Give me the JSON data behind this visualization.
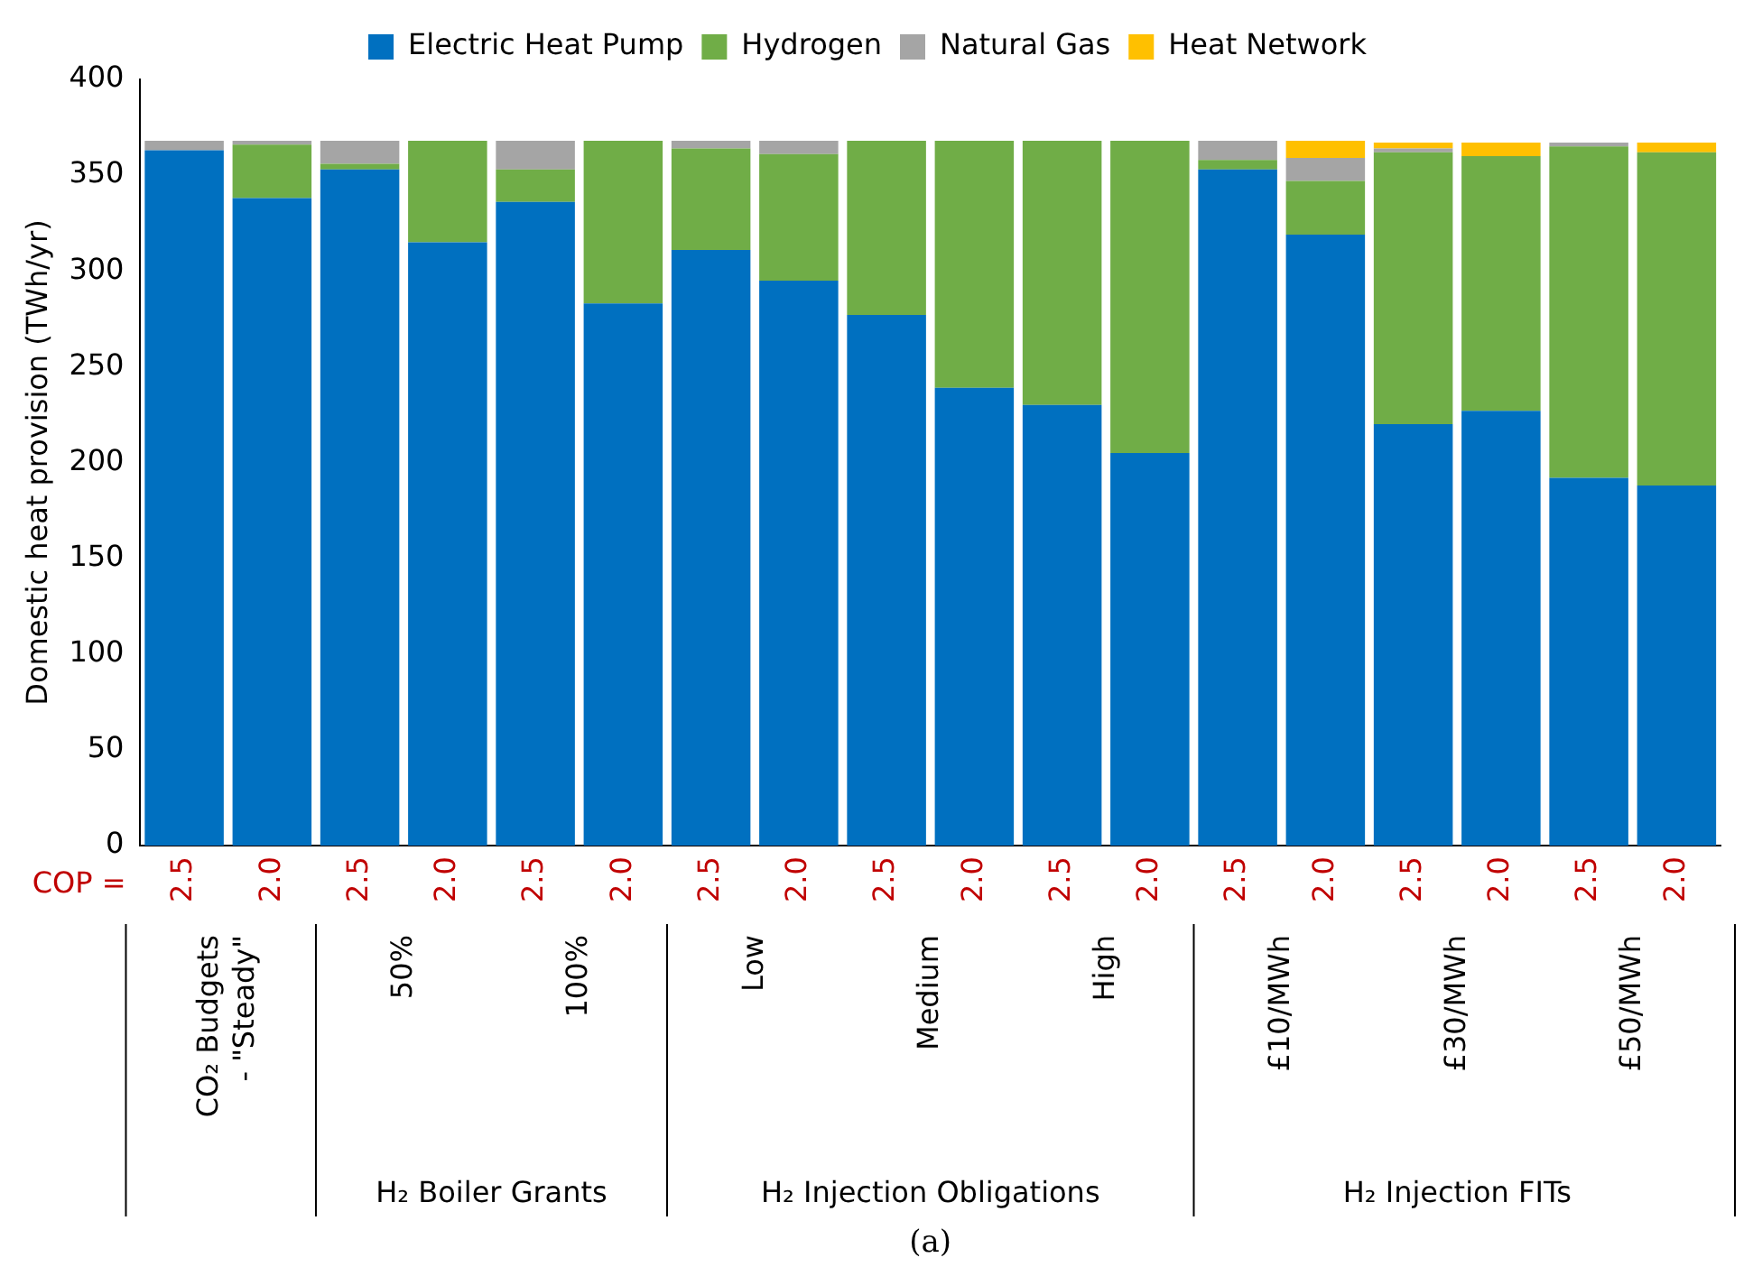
{
  "chart_data": {
    "type": "bar",
    "stacked": true,
    "ylabel": "Domestic heat provision (TWh/yr)",
    "ylim": [
      0,
      400
    ],
    "yticks": [
      0,
      50,
      100,
      150,
      200,
      250,
      300,
      350,
      400
    ],
    "grid": false,
    "legend": "top",
    "categories": [
      "2.5",
      "2.0",
      "2.5",
      "2.0",
      "2.5",
      "2.0",
      "2.5",
      "2.0",
      "2.5",
      "2.0",
      "2.5",
      "2.0",
      "2.5",
      "2.0",
      "2.5",
      "2.0",
      "2.5",
      "2.0"
    ],
    "series": [
      {
        "name": "Electric Heat Pump",
        "color": "#0070c0",
        "values": [
          363,
          338,
          353,
          315,
          336,
          283,
          311,
          295,
          277,
          239,
          230,
          205,
          353,
          319,
          220,
          227,
          192,
          188
        ]
      },
      {
        "name": "Hydrogen",
        "color": "#70ad47",
        "values": [
          0,
          28,
          3,
          53,
          17,
          85,
          53,
          66,
          91,
          129,
          138,
          163,
          5,
          28,
          142,
          133,
          173,
          174
        ]
      },
      {
        "name": "Natural Gas",
        "color": "#a5a5a5",
        "values": [
          5,
          2,
          12,
          0,
          15,
          0,
          4,
          7,
          0,
          0,
          0,
          0,
          10,
          12,
          2,
          0,
          2,
          0
        ]
      },
      {
        "name": "Heat Network",
        "color": "#ffc000",
        "values": [
          0,
          0,
          0,
          0,
          0,
          0,
          0,
          0,
          0,
          0,
          0,
          0,
          0,
          9,
          3,
          7,
          0,
          5
        ]
      }
    ],
    "annotations": [
      "COP =",
      "CO₂ Budgets - \"Steady\"",
      "50%",
      "100%",
      "Low",
      "Medium",
      "High",
      "£10/MWh",
      "£30/MWh",
      "£50/MWh",
      "H₂ Boiler Grants",
      "H₂ Injection Obligations",
      "H₂ Injection FITs",
      "(a)"
    ]
  }
}
